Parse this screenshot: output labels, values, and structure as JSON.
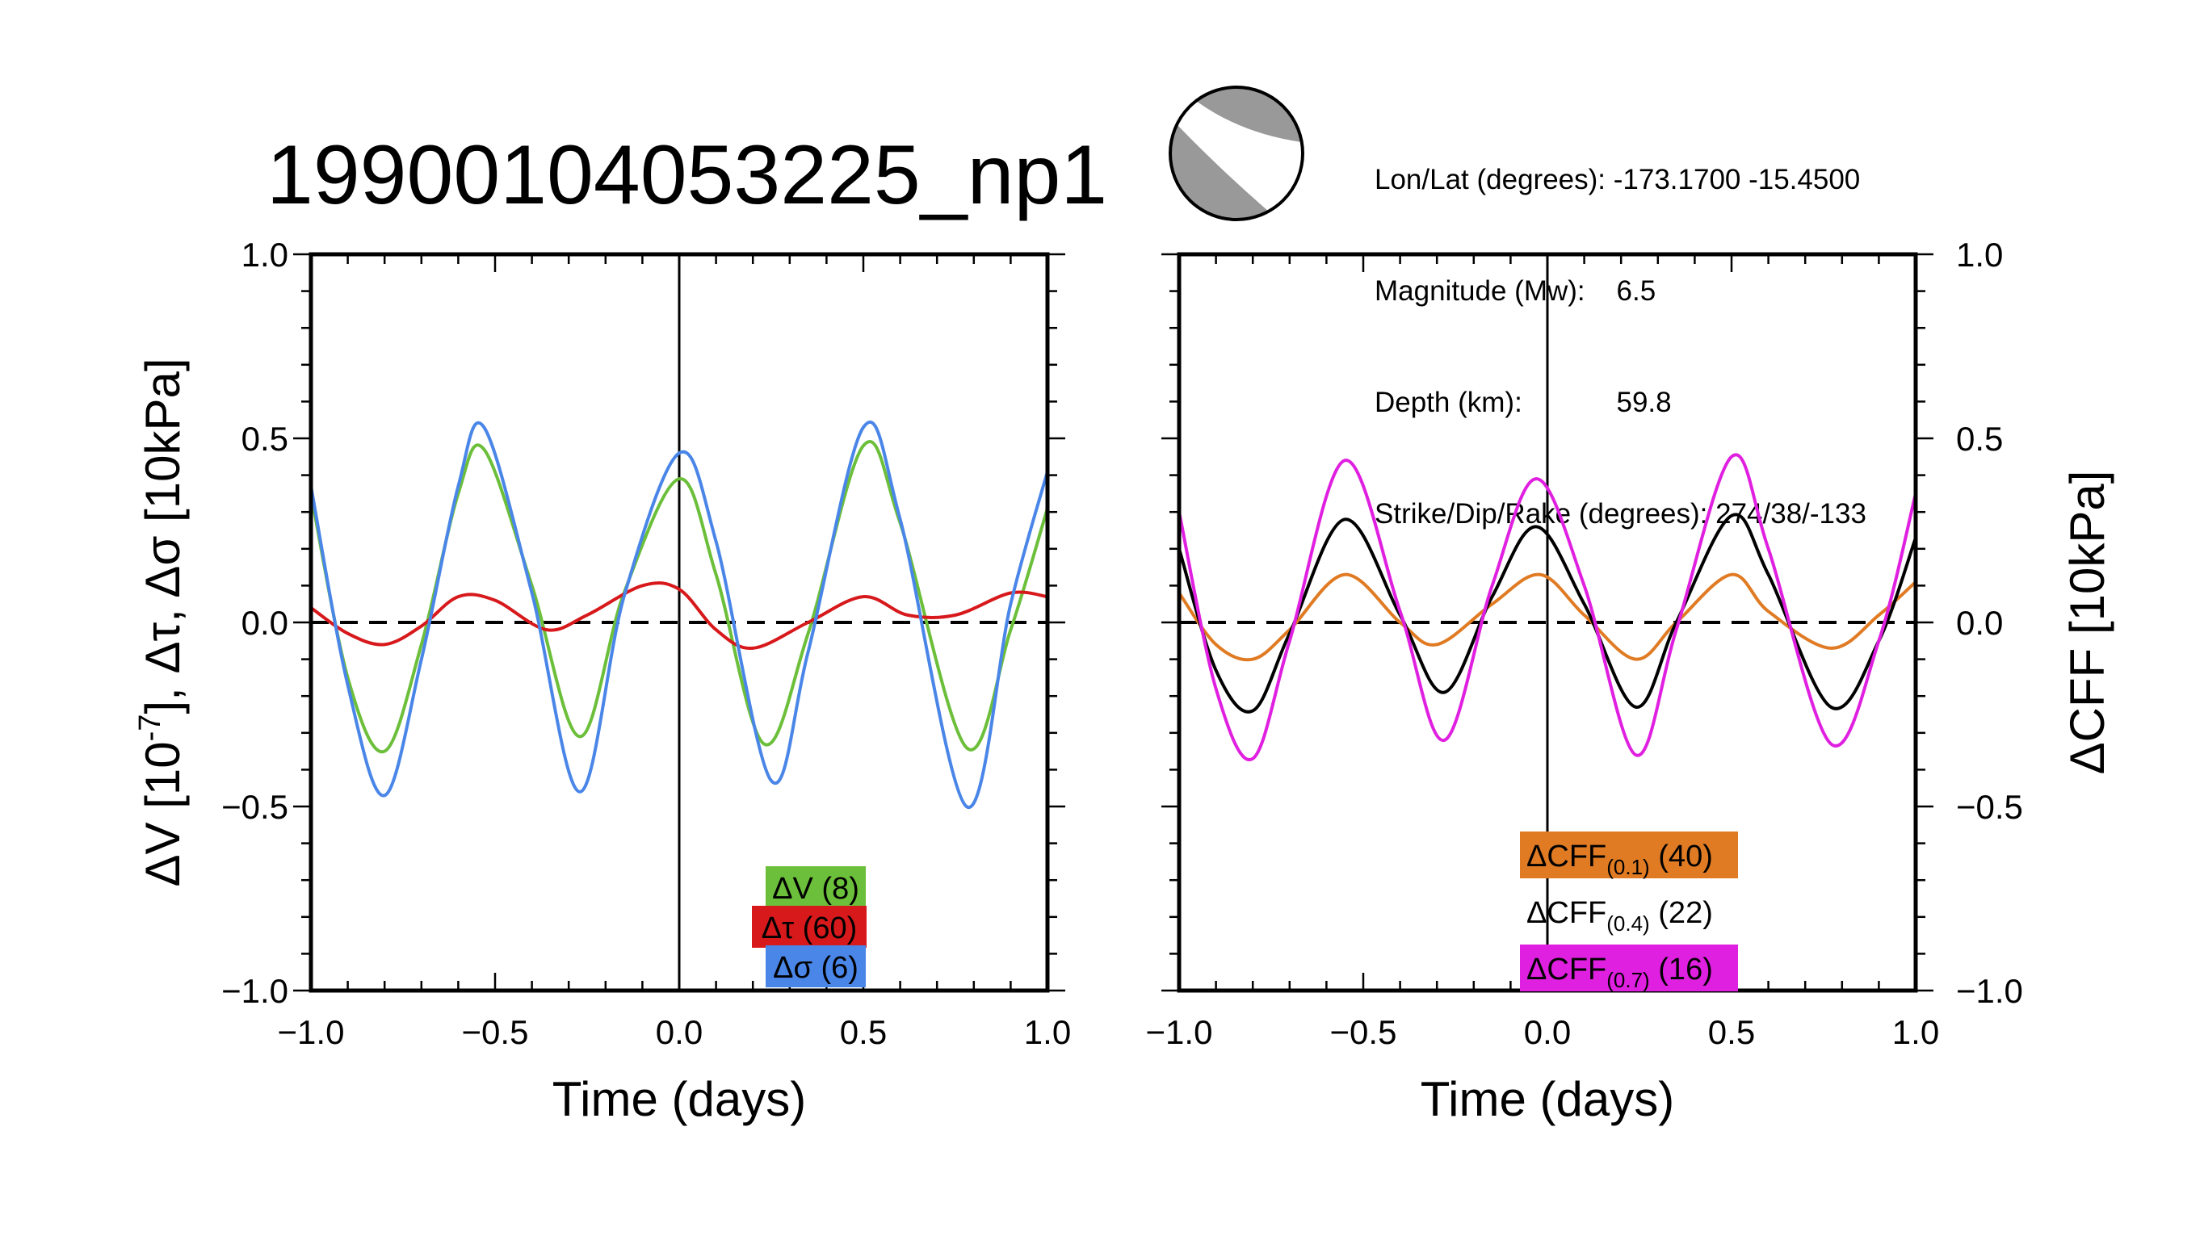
{
  "title": "19900104053225_np1",
  "event_info": {
    "lonlat": "Lon/Lat (degrees): -173.1700 -15.4500",
    "magnitude": "Magnitude (Mw):    6.5",
    "depth": "Depth (km):            59.8",
    "mechanism": "Strike/Dip/Rake (degrees): 274/38/-133"
  },
  "beachball": {
    "fill_color": "#999999",
    "icon": "focal-mechanism-beachball-icon"
  },
  "chart_data": [
    {
      "type": "line",
      "xlabel": "Time (days)",
      "ylabel_parts": [
        "ΔV [10",
        "-7",
        "], Δτ, Δσ [10kPa]"
      ],
      "xlim": [
        -1.0,
        1.0
      ],
      "ylim": [
        -1.0,
        1.0
      ],
      "xticks": [
        "−1.0",
        "−0.5",
        "0.0",
        "0.5",
        "1.0"
      ],
      "yticks": [
        "−1.0",
        "−0.5",
        "0.0",
        "0.5",
        "1.0"
      ],
      "xtick_values": [
        -1.0,
        -0.5,
        0.0,
        0.5,
        1.0
      ],
      "ytick_values": [
        -1.0,
        -0.5,
        0.0,
        0.5,
        1.0
      ],
      "zero_line": "dashed",
      "event_line_x": 0.0,
      "series": [
        {
          "name": "ΔV",
          "count": "(8)",
          "color": "#6cbf3a",
          "x": [
            -1.0,
            -0.9,
            -0.8,
            -0.7,
            -0.6,
            -0.53,
            -0.4,
            -0.27,
            -0.15,
            0.0,
            0.1,
            0.23,
            0.35,
            0.5,
            0.6,
            0.78,
            0.9,
            1.0
          ],
          "y": [
            0.35,
            -0.15,
            -0.35,
            -0.06,
            0.35,
            0.47,
            0.1,
            -0.31,
            0.08,
            0.39,
            0.13,
            -0.33,
            -0.03,
            0.48,
            0.27,
            -0.34,
            -0.02,
            0.31
          ]
        },
        {
          "name": "Δτ",
          "count": "(60)",
          "color": "#d7191c",
          "x": [
            -1.0,
            -0.9,
            -0.8,
            -0.7,
            -0.6,
            -0.5,
            -0.36,
            -0.25,
            -0.1,
            0.0,
            0.1,
            0.2,
            0.35,
            0.5,
            0.62,
            0.75,
            0.9,
            1.0
          ],
          "y": [
            0.04,
            -0.03,
            -0.06,
            -0.01,
            0.07,
            0.06,
            -0.02,
            0.02,
            0.1,
            0.09,
            -0.02,
            -0.07,
            0.0,
            0.07,
            0.02,
            0.02,
            0.08,
            0.07
          ]
        },
        {
          "name": "Δσ",
          "count": "(6)",
          "color": "#4a86e8",
          "x": [
            -1.0,
            -0.9,
            -0.8,
            -0.7,
            -0.6,
            -0.53,
            -0.4,
            -0.27,
            -0.15,
            0.0,
            0.1,
            0.25,
            0.35,
            0.5,
            0.6,
            0.78,
            0.9,
            1.0
          ],
          "y": [
            0.37,
            -0.17,
            -0.47,
            -0.1,
            0.37,
            0.53,
            0.08,
            -0.46,
            0.07,
            0.46,
            0.22,
            -0.43,
            -0.08,
            0.53,
            0.28,
            -0.5,
            0.05,
            0.41
          ]
        }
      ]
    },
    {
      "type": "line",
      "xlabel": "Time (days)",
      "ylabel": "ΔCFF [10kPa]",
      "xlim": [
        -1.0,
        1.0
      ],
      "ylim": [
        -1.0,
        1.0
      ],
      "xticks": [
        "−1.0",
        "−0.5",
        "0.0",
        "0.5",
        "1.0"
      ],
      "yticks": [
        "−1.0",
        "−0.5",
        "0.0",
        "0.5",
        "1.0"
      ],
      "xtick_values": [
        -1.0,
        -0.5,
        0.0,
        0.5,
        1.0
      ],
      "ytick_values": [
        -1.0,
        -0.5,
        0.0,
        0.5,
        1.0
      ],
      "zero_line": "dashed",
      "event_line_x": 0.0,
      "series": [
        {
          "name": "ΔCFF",
          "subscript": "(0.1)",
          "count": "(40)",
          "color": "#e07b24",
          "label_bg": "#e07b24",
          "x": [
            -1.0,
            -0.9,
            -0.8,
            -0.7,
            -0.55,
            -0.4,
            -0.3,
            -0.15,
            -0.02,
            0.1,
            0.24,
            0.35,
            0.5,
            0.6,
            0.77,
            0.9,
            1.0
          ],
          "y": [
            0.08,
            -0.06,
            -0.1,
            -0.02,
            0.13,
            0.0,
            -0.06,
            0.05,
            0.13,
            0.02,
            -0.1,
            0.0,
            0.13,
            0.03,
            -0.07,
            0.02,
            0.11
          ]
        },
        {
          "name": "ΔCFF",
          "subscript": "(0.4)",
          "count": "(22)",
          "color": "#000000",
          "label_bg": "none",
          "x": [
            -1.0,
            -0.9,
            -0.8,
            -0.7,
            -0.55,
            -0.4,
            -0.28,
            -0.15,
            -0.03,
            0.1,
            0.24,
            0.35,
            0.5,
            0.6,
            0.77,
            0.9,
            1.0
          ],
          "y": [
            0.2,
            -0.13,
            -0.24,
            -0.03,
            0.28,
            0.02,
            -0.19,
            0.07,
            0.26,
            0.05,
            -0.23,
            0.0,
            0.29,
            0.13,
            -0.23,
            -0.05,
            0.23
          ]
        },
        {
          "name": "ΔCFF",
          "subscript": "(0.7)",
          "count": "(16)",
          "color": "#e020e0",
          "label_bg": "#e020e0",
          "x": [
            -1.0,
            -0.9,
            -0.8,
            -0.7,
            -0.55,
            -0.4,
            -0.28,
            -0.15,
            -0.03,
            0.1,
            0.24,
            0.35,
            0.5,
            0.6,
            0.77,
            0.9,
            1.0
          ],
          "y": [
            0.3,
            -0.18,
            -0.37,
            -0.05,
            0.44,
            0.03,
            -0.32,
            0.1,
            0.39,
            0.1,
            -0.36,
            -0.02,
            0.45,
            0.2,
            -0.33,
            -0.05,
            0.35
          ]
        }
      ]
    }
  ]
}
